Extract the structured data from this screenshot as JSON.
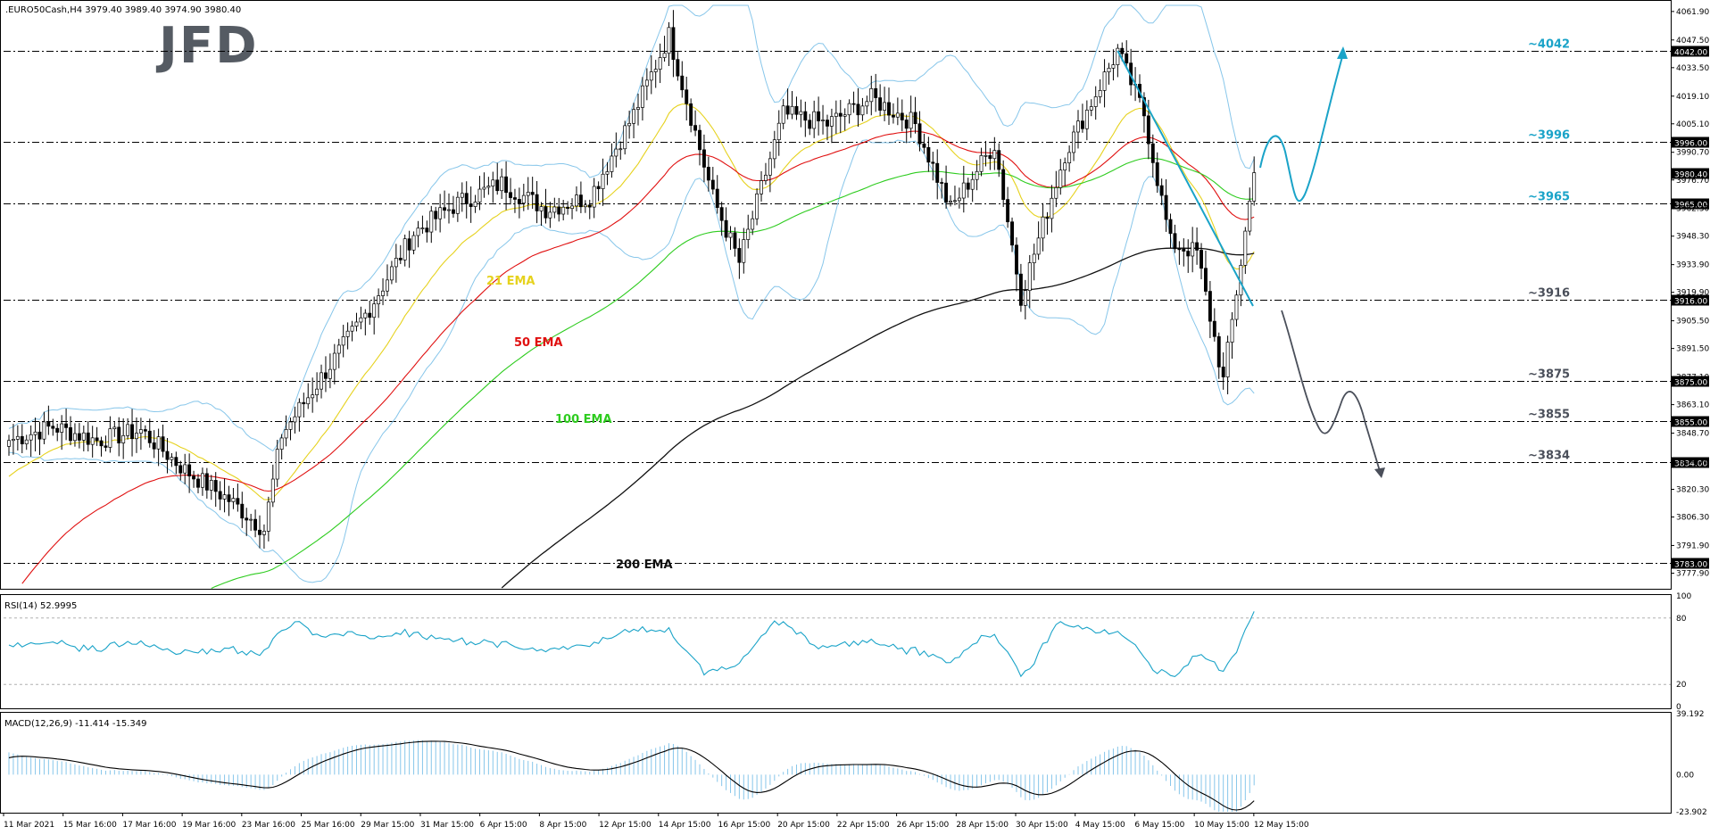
{
  "header": {
    "symbol_label": ".EURO50Cash,H4  3979.40 3989.40 3974.90 3980.40"
  },
  "logo": {
    "text": "JFD"
  },
  "price_panel": {
    "ylim": [
      3770,
      4065
    ],
    "tick_labels": [
      {
        "value": 4061.9,
        "label": "4061.90"
      },
      {
        "value": 4047.5,
        "label": "4047.50"
      },
      {
        "value": 4033.5,
        "label": "4033.50"
      },
      {
        "value": 4019.1,
        "label": "4019.10"
      },
      {
        "value": 4005.1,
        "label": "4005.10"
      },
      {
        "value": 3990.7,
        "label": "3990.70"
      },
      {
        "value": 3976.7,
        "label": "3976.70"
      },
      {
        "value": 3962.3,
        "label": "3962.30"
      },
      {
        "value": 3948.3,
        "label": "3948.30"
      },
      {
        "value": 3933.9,
        "label": "3933.90"
      },
      {
        "value": 3919.9,
        "label": "3919.90"
      },
      {
        "value": 3905.5,
        "label": "3905.50"
      },
      {
        "value": 3891.5,
        "label": "3891.50"
      },
      {
        "value": 3877.1,
        "label": "3877.10"
      },
      {
        "value": 3863.1,
        "label": "3863.10"
      },
      {
        "value": 3848.7,
        "label": "3848.70"
      },
      {
        "value": 3834.7,
        "label": "3834.70"
      },
      {
        "value": 3820.3,
        "label": "3820.30"
      },
      {
        "value": 3806.3,
        "label": "3806.30"
      },
      {
        "value": 3791.9,
        "label": "3791.90"
      },
      {
        "value": 3777.9,
        "label": "3777.90"
      }
    ],
    "levels": [
      {
        "value": 4042,
        "tag": "4042.00",
        "label": "~4042",
        "color": "#1aa3c8"
      },
      {
        "value": 3996,
        "tag": "3996.00",
        "label": "~3996",
        "color": "#1aa3c8"
      },
      {
        "value": 3965,
        "tag": "3965.00",
        "label": "~3965",
        "color": "#1aa3c8"
      },
      {
        "value": 3916,
        "tag": "3916.00",
        "label": "~3916",
        "color": "#4a4f5a"
      },
      {
        "value": 3875,
        "tag": "3875.00",
        "label": "~3875",
        "color": "#4a4f5a"
      },
      {
        "value": 3855,
        "tag": "3855.00",
        "label": "~3855",
        "color": "#4a4f5a"
      },
      {
        "value": 3834,
        "tag": "3834.00",
        "label": "~3834",
        "color": "#4a4f5a"
      },
      {
        "value": 3783,
        "tag": "3783.00",
        "label": "",
        "color": "#4a4f5a"
      }
    ],
    "current_price": {
      "value": 3980.4,
      "tag": "3980.40"
    },
    "ema_labels": [
      {
        "text": "21 EMA",
        "color": "#e6d21e"
      },
      {
        "text": "50 EMA",
        "color": "#e01010"
      },
      {
        "text": "100 EMA",
        "color": "#2ecc1f"
      },
      {
        "text": "200 EMA",
        "color": "#111111"
      }
    ]
  },
  "rsi_panel": {
    "title": "RSI(14) 52.9995",
    "ylim": [
      0,
      100
    ],
    "ticks": [
      "100",
      "80",
      "20",
      "0"
    ]
  },
  "macd_panel": {
    "title": "MACD(12,26,9) -11.414 -15.349",
    "ticks": [
      "39.192",
      "0.00",
      "-23.902"
    ]
  },
  "x_axis": {
    "labels": [
      "11 Mar 2021",
      "15 Mar 16:00",
      "17 Mar 16:00",
      "19 Mar 16:00",
      "23 Mar 16:00",
      "25 Mar 16:00",
      "29 Mar 15:00",
      "31 Mar 15:00",
      "6 Apr 15:00",
      "8 Apr 15:00",
      "12 Apr 15:00",
      "14 Apr 15:00",
      "16 Apr 15:00",
      "20 Apr 15:00",
      "22 Apr 15:00",
      "26 Apr 15:00",
      "28 Apr 15:00",
      "30 Apr 15:00",
      "4 May 15:00",
      "6 May 15:00",
      "10 May 15:00",
      "12 May 15:00"
    ]
  },
  "colors": {
    "grid": "#000000",
    "bollinger": "#87c6ea",
    "rsi_line": "#1aa3c8",
    "projection_up": "#1aa3c8",
    "projection_down": "#4a4f5a",
    "trendline": "#1aa3c8",
    "macd_hist": "#87c6ea",
    "macd_signal": "#000000"
  },
  "chart_data": {
    "type": "candlestick",
    "instrument": ".EURO50Cash",
    "timeframe": "H4",
    "anchors": [
      {
        "bar": 0,
        "close": 3845
      },
      {
        "bar": 10,
        "close": 3852
      },
      {
        "bar": 20,
        "close": 3845
      },
      {
        "bar": 30,
        "close": 3850
      },
      {
        "bar": 40,
        "close": 3830
      },
      {
        "bar": 50,
        "close": 3815
      },
      {
        "bar": 58,
        "close": 3800
      },
      {
        "bar": 62,
        "close": 3848
      },
      {
        "bar": 72,
        "close": 3880
      },
      {
        "bar": 82,
        "close": 3912
      },
      {
        "bar": 92,
        "close": 3950
      },
      {
        "bar": 102,
        "close": 3965
      },
      {
        "bar": 112,
        "close": 3975
      },
      {
        "bar": 122,
        "close": 3962
      },
      {
        "bar": 132,
        "close": 3968
      },
      {
        "bar": 142,
        "close": 4010
      },
      {
        "bar": 150,
        "close": 4050
      },
      {
        "bar": 160,
        "close": 3968
      },
      {
        "bar": 166,
        "close": 3935
      },
      {
        "bar": 176,
        "close": 4010
      },
      {
        "bar": 186,
        "close": 4005
      },
      {
        "bar": 196,
        "close": 4018
      },
      {
        "bar": 206,
        "close": 4005
      },
      {
        "bar": 214,
        "close": 3962
      },
      {
        "bar": 224,
        "close": 3995
      },
      {
        "bar": 230,
        "close": 3918
      },
      {
        "bar": 240,
        "close": 3990
      },
      {
        "bar": 252,
        "close": 4042
      },
      {
        "bar": 258,
        "close": 4010
      },
      {
        "bar": 264,
        "close": 3945
      },
      {
        "bar": 270,
        "close": 3940
      },
      {
        "bar": 276,
        "close": 3875
      },
      {
        "bar": 283,
        "close": 3980.4
      }
    ],
    "total_bars": 284
  }
}
